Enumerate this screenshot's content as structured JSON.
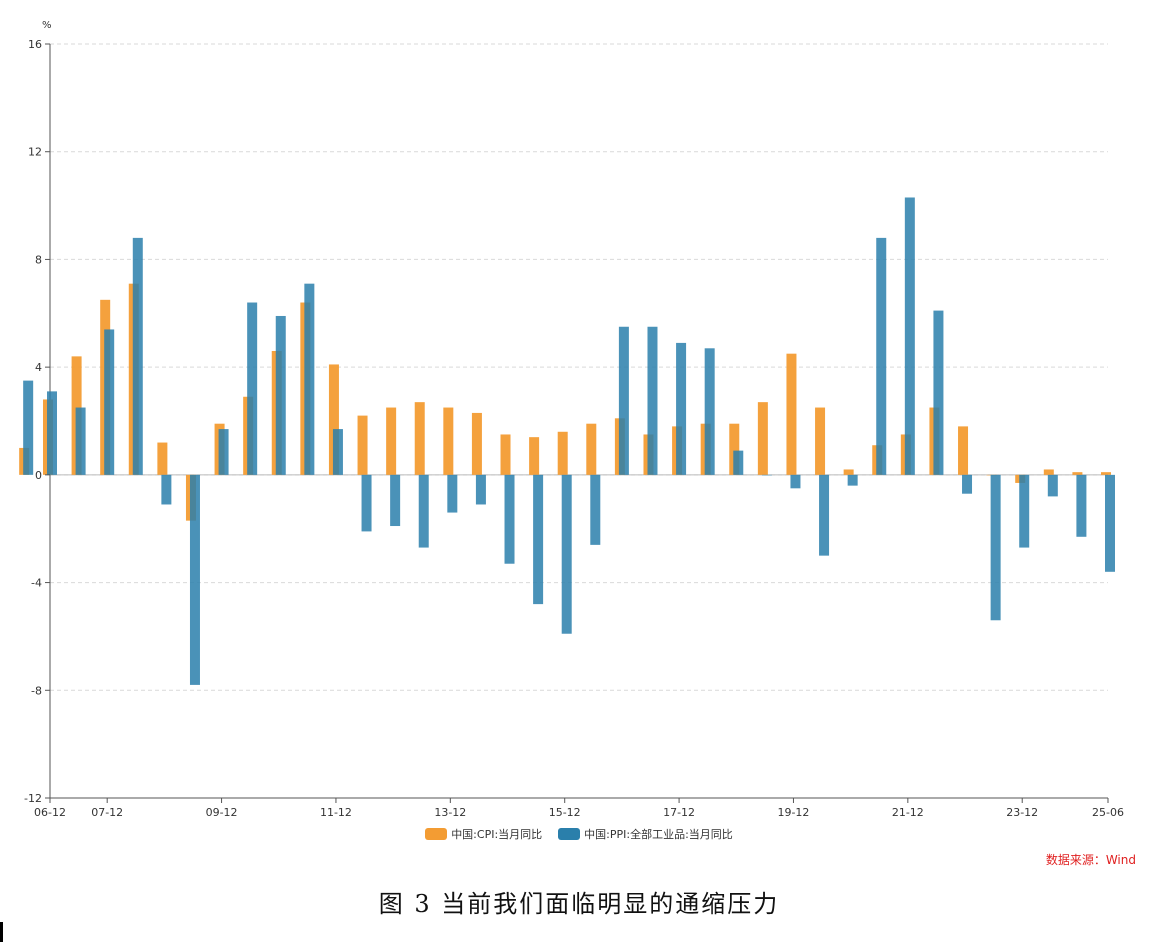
{
  "chart_data": {
    "type": "bar",
    "unit": "%",
    "ylim": [
      -12,
      16
    ],
    "yticks": [
      16,
      12,
      8,
      4,
      0,
      -4,
      -8,
      -12
    ],
    "grid": true,
    "legend_position": "bottom-center",
    "x": [
      "06-07",
      "06-12",
      "07-06",
      "07-12",
      "08-06",
      "08-12",
      "09-06",
      "09-12",
      "10-06",
      "10-12",
      "11-06",
      "11-12",
      "12-06",
      "12-12",
      "13-06",
      "13-12",
      "14-06",
      "14-12",
      "15-06",
      "15-12",
      "16-06",
      "16-12",
      "17-06",
      "17-12",
      "18-06",
      "18-12",
      "19-06",
      "19-12",
      "20-06",
      "20-12",
      "21-06",
      "21-12",
      "22-06",
      "22-12",
      "23-06",
      "23-12",
      "24-06",
      "24-12",
      "25-06"
    ],
    "xticks": [
      "06-12",
      "07-12",
      "09-12",
      "11-12",
      "13-12",
      "15-12",
      "17-12",
      "19-12",
      "21-12",
      "23-12",
      "25-06"
    ],
    "series": [
      {
        "name": "中国:CPI:当月同比",
        "color": "#f39c33",
        "values": [
          1.0,
          2.8,
          4.4,
          6.5,
          7.1,
          1.2,
          -1.7,
          1.9,
          2.9,
          4.6,
          6.4,
          4.1,
          2.2,
          2.5,
          2.7,
          2.5,
          2.3,
          1.5,
          1.4,
          1.6,
          1.9,
          2.1,
          1.5,
          1.8,
          1.9,
          1.9,
          2.7,
          4.5,
          2.5,
          0.2,
          1.1,
          1.5,
          2.5,
          1.8,
          0.0,
          -0.3,
          0.2,
          0.1,
          0.1
        ]
      },
      {
        "name": "中国:PPI:全部工业品:当月同比",
        "color": "#2a7fab",
        "values": [
          3.5,
          3.1,
          2.5,
          5.4,
          8.8,
          -1.1,
          -7.8,
          1.7,
          6.4,
          5.9,
          7.1,
          1.7,
          -2.1,
          -1.9,
          -2.7,
          -1.4,
          -1.1,
          -3.3,
          -4.8,
          -5.9,
          -2.6,
          5.5,
          5.5,
          4.9,
          4.7,
          0.9,
          0.0,
          -0.5,
          -3.0,
          -0.4,
          8.8,
          10.3,
          6.1,
          -0.7,
          -5.4,
          -2.7,
          -0.8,
          -2.3,
          -3.6
        ]
      }
    ]
  },
  "legend": {
    "cpi_label": "中国:CPI:当月同比",
    "ppi_label": "中国:PPI:全部工业品:当月同比"
  },
  "source": {
    "text": "数据来源：Wind",
    "color": "#e02020"
  },
  "caption": {
    "text": "图 3 当前我们面临明显的通缩压力"
  }
}
